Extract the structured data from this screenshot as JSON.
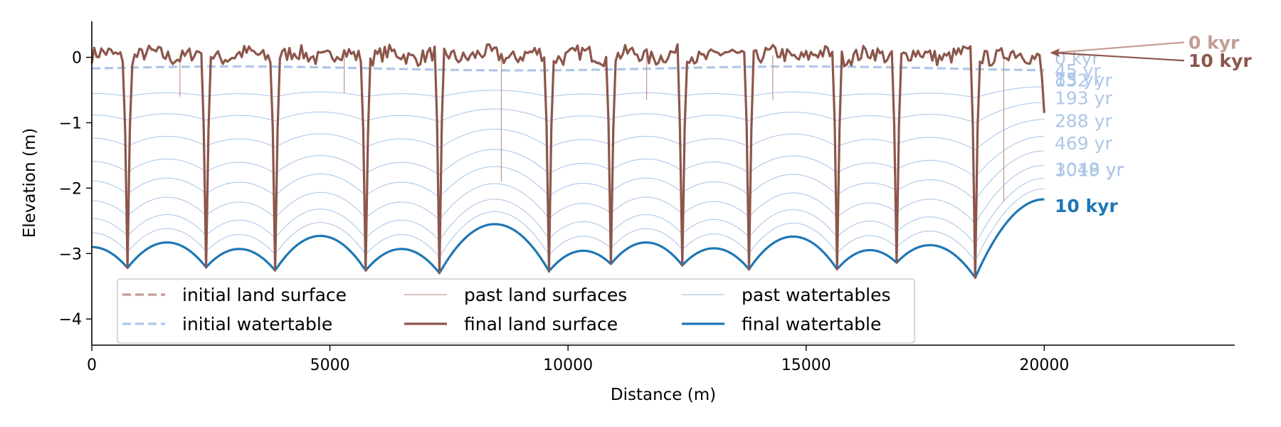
{
  "chart_data": {
    "type": "line",
    "title": "",
    "xlabel": "Distance (m)",
    "ylabel": "Elevation (m)",
    "xlim": [
      0,
      24000
    ],
    "ylim": [
      -4.4,
      0.55
    ],
    "x_ticks": [
      0,
      5000,
      10000,
      15000,
      20000
    ],
    "y_ticks": [
      0,
      -1,
      -2,
      -3,
      -4
    ],
    "x_tick_labels": [
      "0",
      "5000",
      "10000",
      "15000",
      "20000"
    ],
    "y_tick_labels": [
      "0",
      "−1",
      "−2",
      "−3",
      "−4"
    ],
    "grid": false,
    "legend_position": "lower-left",
    "colors": {
      "land_final": "#8c564b",
      "land_initial": "#c49c94",
      "land_past": "#c49c94",
      "water_final": "#1f77b4",
      "water_initial": "#aec7e8",
      "water_past": "#aec7e8"
    },
    "domain_length": 20000,
    "channel_positions": [
      750,
      2400,
      3850,
      5750,
      7300,
      9600,
      10900,
      12400,
      13800,
      15650,
      16900,
      18550,
      20000
    ],
    "final_watertable_minima": [
      -3.22,
      -3.21,
      -3.26,
      -3.26,
      -3.3,
      -3.27,
      -3.16,
      -3.18,
      -3.24,
      -3.24,
      -3.14,
      -3.37,
      -2.17
    ],
    "final_watertable_left_edge": -2.9,
    "final_watertable_peaks": [
      -2.83,
      -2.93,
      -2.73,
      -2.93,
      -2.55,
      -2.96,
      -2.83,
      -2.92,
      -2.74,
      -2.95,
      -2.88
    ],
    "final_watertable_rise_to_right_edge": true,
    "initial_watertable_level": -0.17,
    "past_watertables_depth_fractions": [
      0.14,
      0.26,
      0.39,
      0.52,
      0.63,
      0.74,
      0.84,
      0.92
    ],
    "land_surface_mean": 0.03,
    "land_surface_amplitude": 0.12,
    "final_channel_bottoms": [
      -3.22,
      -3.21,
      -3.26,
      -3.26,
      -3.3,
      -3.27,
      -3.16,
      -3.18,
      -3.24,
      -3.24,
      -3.14,
      -3.37,
      -0.85
    ],
    "minor_channels": [
      {
        "x": 1850,
        "depth": -0.6
      },
      {
        "x": 5300,
        "depth": -0.55
      },
      {
        "x": 8600,
        "depth": -1.9
      },
      {
        "x": 11650,
        "depth": -0.65
      },
      {
        "x": 14300,
        "depth": -0.65
      },
      {
        "x": 19150,
        "depth": -2.2
      }
    ],
    "watertable_labels": [
      {
        "text": "0 kyr",
        "y": -0.01
      },
      {
        "text": "45 yr",
        "y": -0.2
      },
      {
        "text": "85 yr",
        "y": -0.33
      },
      {
        "text": "132 yr",
        "y": -0.35
      },
      {
        "text": "193 yr",
        "y": -0.62
      },
      {
        "text": "288 yr",
        "y": -0.97
      },
      {
        "text": "469 yr",
        "y": -1.31
      },
      {
        "text": "1048 yr",
        "y": -1.71
      },
      {
        "text": "3019 yr",
        "y": -1.72
      }
    ],
    "watertable_final_label": {
      "text": "10 kyr",
      "y": -2.27
    },
    "land_labels": [
      {
        "text": "0 kyr",
        "y": 0.23,
        "color": "#c49c94"
      },
      {
        "text": "10 kyr",
        "y": -0.05,
        "color": "#8c564b"
      }
    ],
    "legend": [
      {
        "label": "initial land surface",
        "style": "land_initial"
      },
      {
        "label": "past land surfaces",
        "style": "land_past"
      },
      {
        "label": "past watertables",
        "style": "water_past"
      },
      {
        "label": "initial watertable",
        "style": "water_initial"
      },
      {
        "label": "final land surface",
        "style": "land_final"
      },
      {
        "label": "final watertable",
        "style": "water_final"
      }
    ]
  }
}
